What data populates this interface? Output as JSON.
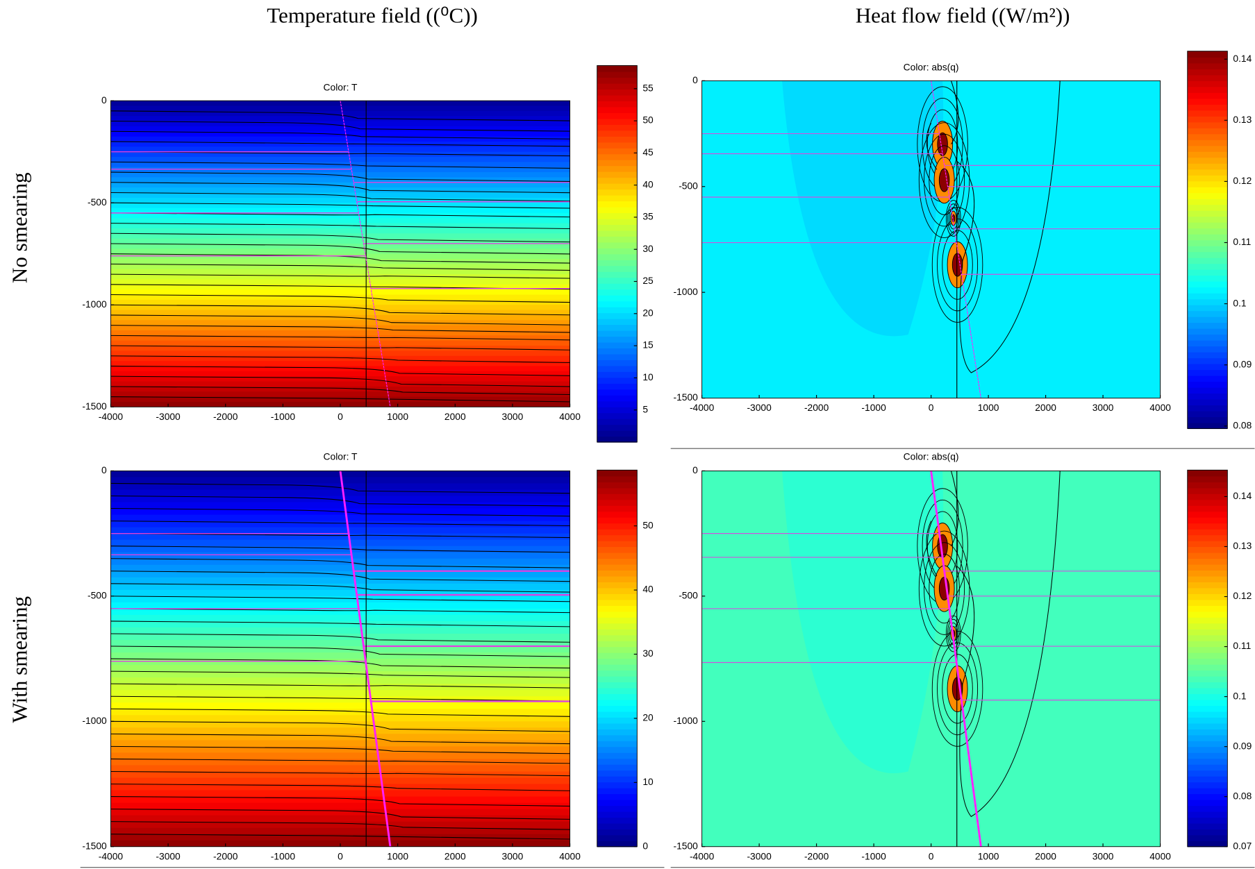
{
  "column_titles": [
    "Temperature field ((⁰C))",
    "Heat flow field ((W/m²))"
  ],
  "row_labels": [
    "No smearing",
    "With smearing"
  ],
  "chart_data": [
    {
      "type": "contour",
      "title": "Color: T",
      "colormap": "jet",
      "xlim": [
        -4000,
        4000
      ],
      "xticks": [
        -4000,
        -3000,
        -2000,
        -1000,
        0,
        1000,
        2000,
        3000,
        4000
      ],
      "ylim": [
        -1500,
        0
      ],
      "yticks": [
        0,
        -500,
        -1000,
        -1500
      ],
      "clim": [
        0,
        58.6
      ],
      "cticks": [
        5,
        10,
        15,
        20,
        25,
        30,
        35,
        40,
        45,
        50,
        55
      ]
    },
    {
      "type": "contour",
      "title": "Color: abs(q)",
      "colormap": "jet",
      "xlim": [
        -4000,
        4000
      ],
      "xticks": [
        -4000,
        -3000,
        -2000,
        -1000,
        0,
        1000,
        2000,
        3000,
        4000
      ],
      "ylim": [
        -1500,
        0
      ],
      "yticks": [
        0,
        -500,
        -1000,
        -1500
      ],
      "clim": [
        0.0796,
        0.1413
      ],
      "cticks": [
        0.08,
        0.09,
        0.1,
        0.11,
        0.12,
        0.13,
        0.14
      ]
    },
    {
      "type": "contour",
      "title": "Color: T",
      "colormap": "jet",
      "xlim": [
        -4000,
        4000
      ],
      "xticks": [
        -4000,
        -3000,
        -2000,
        -1000,
        0,
        1000,
        2000,
        3000,
        4000
      ],
      "ylim": [
        -1500,
        0
      ],
      "yticks": [
        0,
        -500,
        -1000,
        -1500
      ],
      "clim": [
        0,
        58.7
      ],
      "cticks": [
        0,
        10,
        20,
        30,
        40,
        50
      ]
    },
    {
      "type": "contour",
      "title": "Color: abs(q)",
      "colormap": "jet",
      "xlim": [
        -4000,
        4000
      ],
      "xticks": [
        -4000,
        -3000,
        -2000,
        -1000,
        0,
        1000,
        2000,
        3000,
        4000
      ],
      "ylim": [
        -1500,
        0
      ],
      "yticks": [
        0,
        -500,
        -1000,
        -1500
      ],
      "clim": [
        0.07,
        0.1453
      ],
      "cticks": [
        0.07,
        0.08,
        0.09,
        0.1,
        0.11,
        0.12,
        0.13,
        0.14
      ]
    }
  ]
}
